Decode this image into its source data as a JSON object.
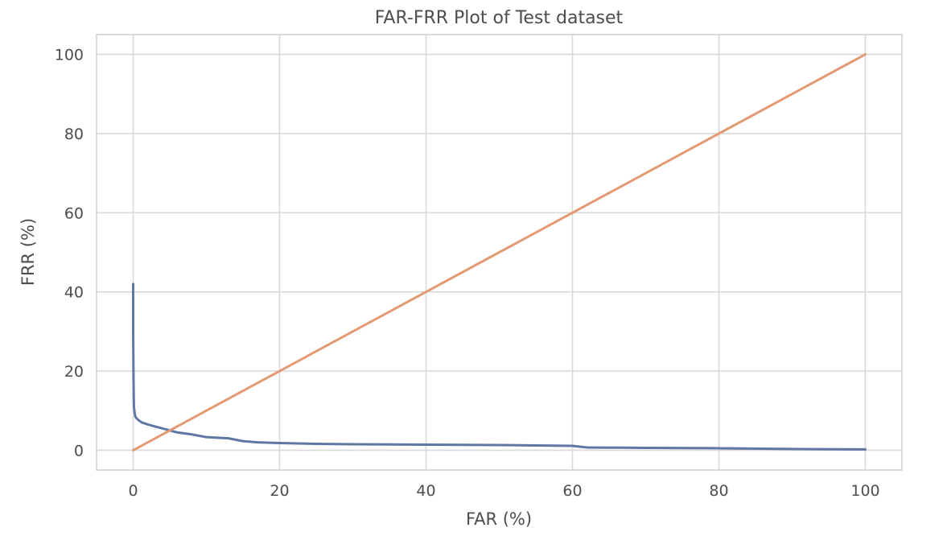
{
  "chart_data": {
    "type": "line",
    "title": "FAR-FRR Plot of Test dataset",
    "xlabel": "FAR (%)",
    "ylabel": "FRR (%)",
    "xlim": [
      -5,
      105
    ],
    "ylim": [
      -5,
      105
    ],
    "xticks": [
      0,
      20,
      40,
      60,
      80,
      100
    ],
    "yticks": [
      0,
      20,
      40,
      60,
      80,
      100
    ],
    "grid": true,
    "series": [
      {
        "color": "#5f77a3",
        "x": [
          0,
          0,
          0.05,
          0.1,
          0.2,
          0.3,
          0.5,
          0.8,
          1.2,
          2,
          3,
          4,
          5,
          6,
          8,
          10,
          13,
          15,
          17,
          20,
          25,
          30,
          40,
          50,
          55,
          60,
          62,
          70,
          80,
          90,
          100
        ],
        "y": [
          42,
          30,
          18,
          11,
          9.5,
          8.5,
          8,
          7.5,
          7,
          6.5,
          6,
          5.5,
          5,
          4.5,
          4,
          3.3,
          3,
          2.3,
          2,
          1.8,
          1.6,
          1.5,
          1.4,
          1.3,
          1.2,
          1.1,
          0.7,
          0.6,
          0.5,
          0.3,
          0.2
        ]
      },
      {
        "color": "#e39a73",
        "x": [
          0,
          100
        ],
        "y": [
          0,
          100
        ]
      }
    ]
  }
}
